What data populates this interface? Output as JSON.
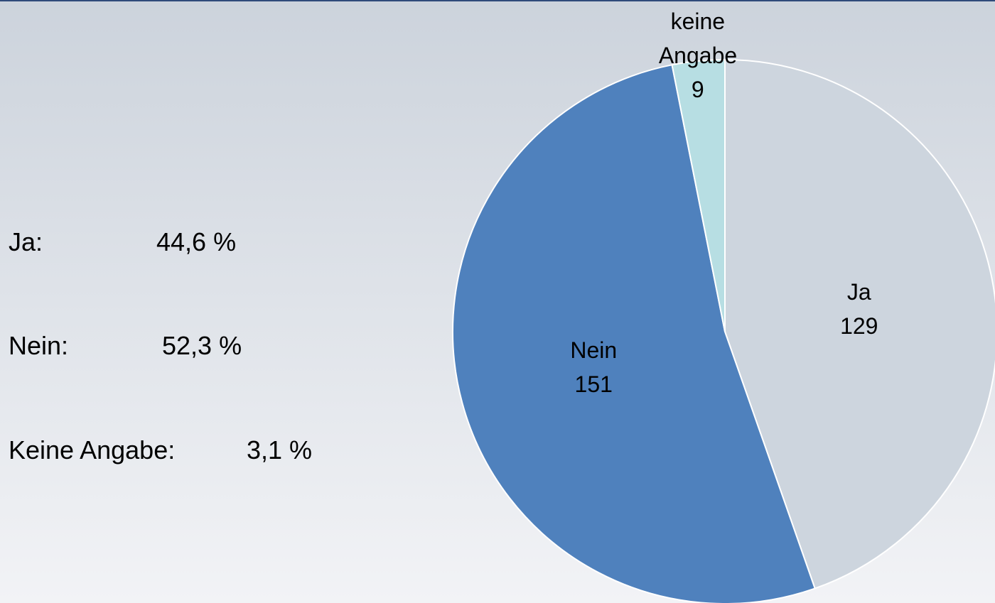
{
  "chart_data": {
    "type": "pie",
    "categories": [
      "Ja",
      "Nein",
      "keine Angabe"
    ],
    "values": [
      129,
      151,
      9
    ],
    "colors": [
      "#cdd5de",
      "#4f81bd",
      "#b7dee3"
    ]
  },
  "summary": [
    {
      "text": "Ja:",
      "percent": "44,6 %"
    },
    {
      "text": "Nein:",
      "percent": "52,3 %"
    },
    {
      "text": "Keine Angabe:",
      "percent": "3,1 %"
    }
  ]
}
